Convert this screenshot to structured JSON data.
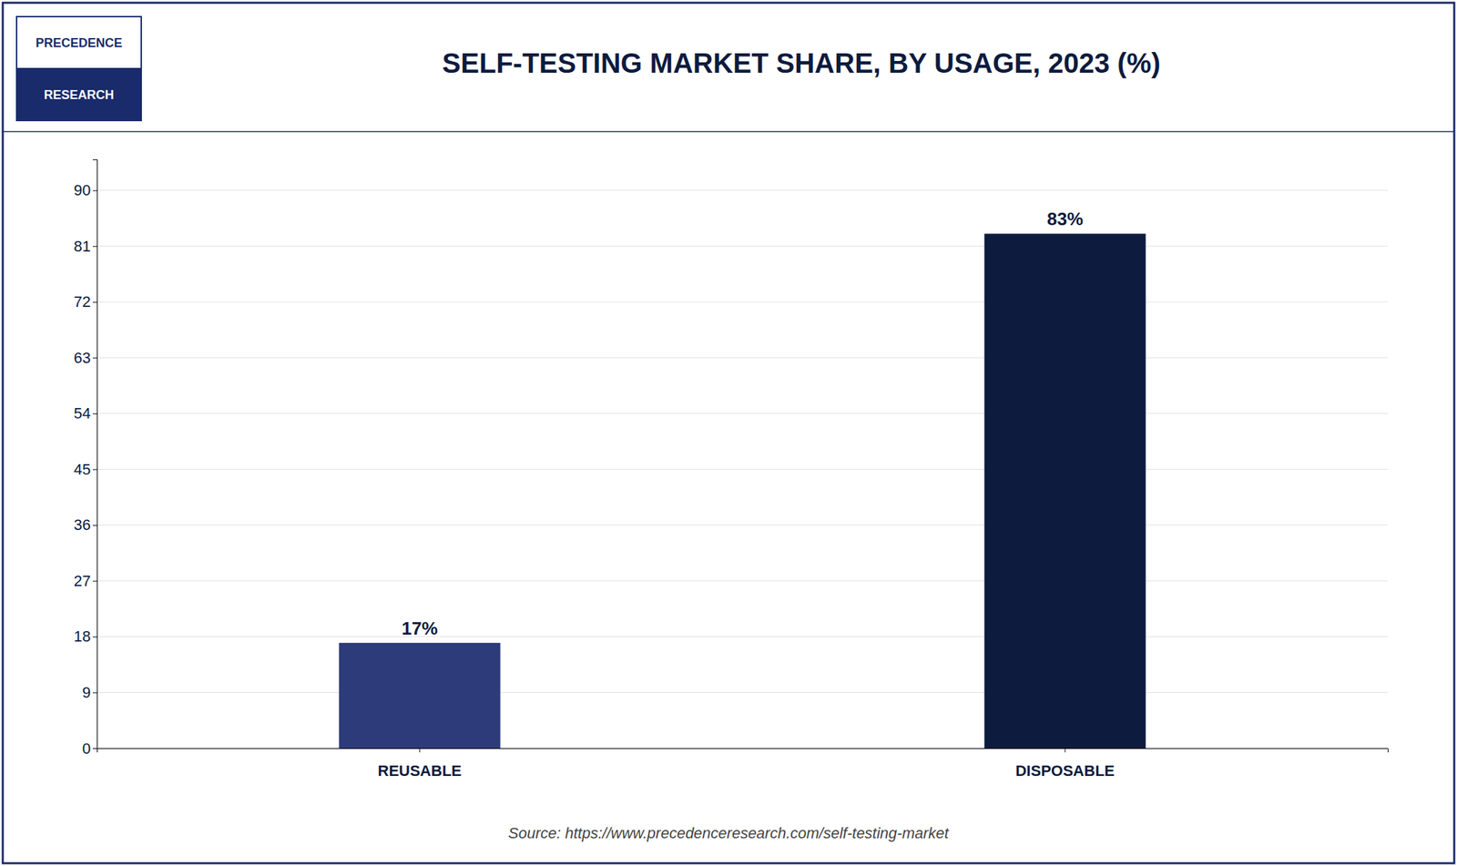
{
  "chart_data": {
    "type": "bar",
    "title": "SELF-TESTING MARKET SHARE, BY USAGE, 2023 (%)",
    "categories": [
      "REUSABLE",
      "DISPOSABLE"
    ],
    "values": [
      17,
      83
    ],
    "value_labels": [
      "17%",
      "83%"
    ],
    "data_labels": true,
    "colors": [
      "#2E3B7A",
      "#0D1B3E"
    ],
    "ylim": [
      0,
      95
    ],
    "yticks": [
      0,
      9,
      18,
      27,
      36,
      45,
      54,
      63,
      72,
      81,
      90
    ],
    "grid": true,
    "source": "Source: https://www.precedenceresearch.com/self-testing-market",
    "logo_text": [
      "PRECEDENCE",
      "RESEARCH"
    ]
  }
}
